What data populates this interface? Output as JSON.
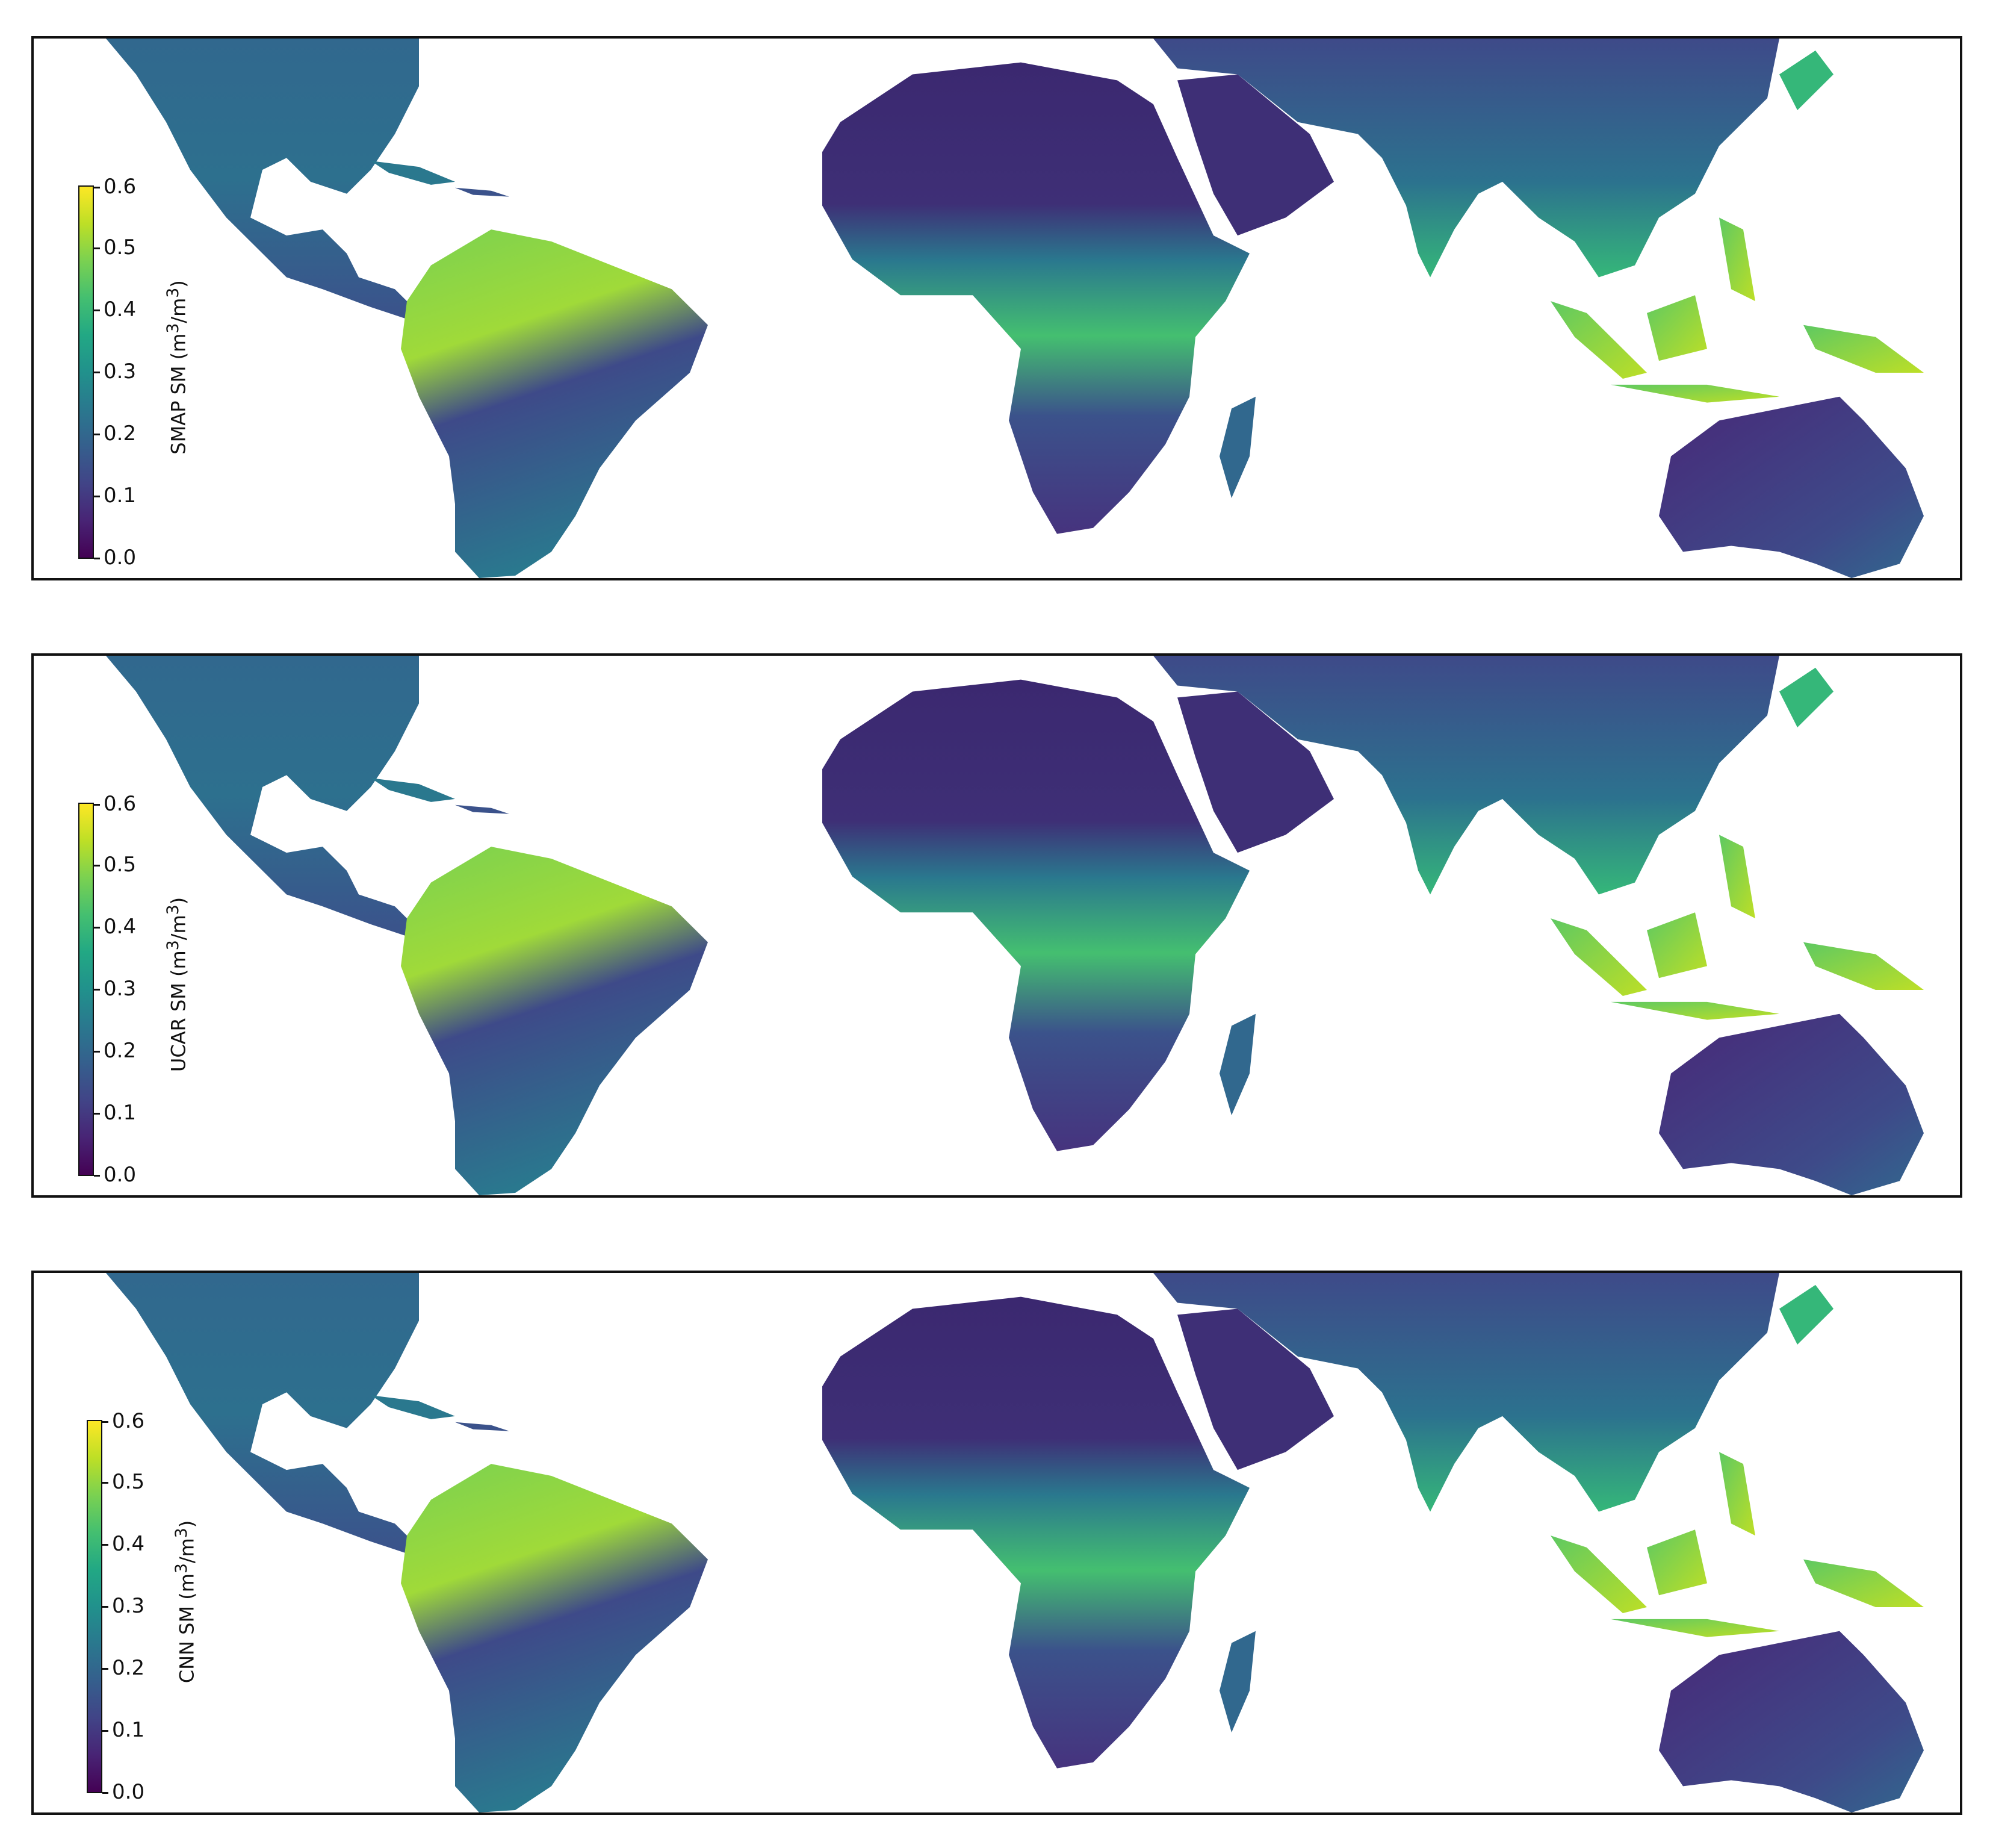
{
  "panels": [
    {
      "colorbar": {
        "label_prefix": "SMAP SM (m",
        "label_mid": "/m",
        "label_suffix": ")",
        "sup": "3",
        "ticks": [
          "0.0",
          "0.1",
          "0.2",
          "0.3",
          "0.4",
          "0.5",
          "0.6"
        ]
      }
    },
    {
      "colorbar": {
        "label_prefix": "UCAR SM (m",
        "label_mid": "/m",
        "label_suffix": ")",
        "sup": "3",
        "ticks": [
          "0.0",
          "0.1",
          "0.2",
          "0.3",
          "0.4",
          "0.5",
          "0.6"
        ]
      }
    },
    {
      "colorbar": {
        "label_prefix": "CNN SM (m",
        "label_mid": "/m",
        "label_suffix": ")",
        "sup": "3",
        "ticks": [
          "0.0",
          "0.1",
          "0.2",
          "0.3",
          "0.4",
          "0.5",
          "0.6"
        ]
      }
    }
  ],
  "colormap": "viridis",
  "value_range": [
    0.0,
    0.6
  ],
  "colors": {
    "low": "#440154",
    "mid": "#21918c",
    "high": "#fde725",
    "frame": "#111111"
  }
}
